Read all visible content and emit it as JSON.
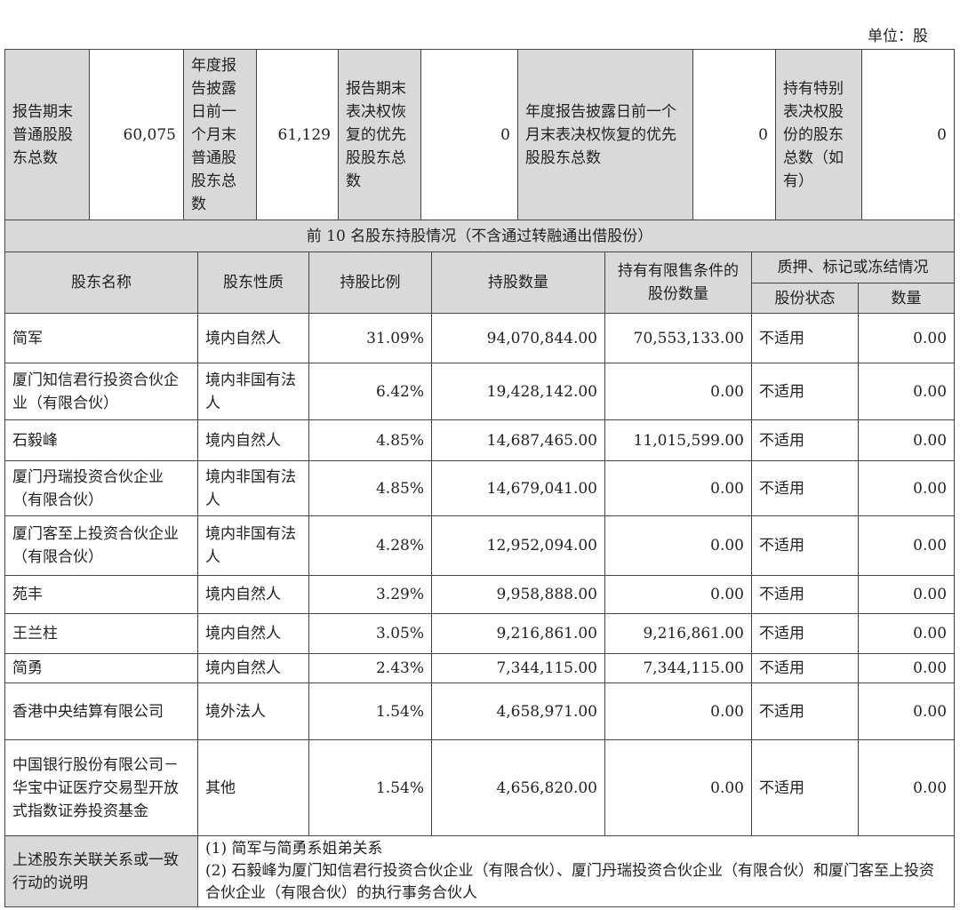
{
  "unit_label": "单位：股",
  "summary": [
    {
      "label": "报告期末普通股股东总数",
      "value": "60,075"
    },
    {
      "label": "年度报告披露日前一个月末普通股股东总数",
      "value": "61,129"
    },
    {
      "label": "报告期末表决权恢复的优先股股东总数",
      "value": "0"
    },
    {
      "label": "年度报告披露日前一个月末表决权恢复的优先股股东总数",
      "value": "0"
    },
    {
      "label": "持有特别表决权股份的股东总数（如有）",
      "value": "0"
    }
  ],
  "section_title": "前 10 名股东持股情况（不含通过转融通出借股份）",
  "headers": {
    "name": "股东名称",
    "nature": "股东性质",
    "ratio": "持股比例",
    "shares": "持股数量",
    "restricted": "持有有限售条件的股份数量",
    "pledge": "质押、标记或冻结情况",
    "status": "股份状态",
    "qty": "数量"
  },
  "rows": [
    {
      "name": "简军",
      "nature": "境内自然人",
      "ratio": "31.09%",
      "shares": "94,070,844.00",
      "restricted": "70,553,133.00",
      "status": "不适用",
      "qty": "0.00"
    },
    {
      "name": "厦门知信君行投资合伙企业（有限合伙）",
      "nature": "境内非国有法人",
      "ratio": "6.42%",
      "shares": "19,428,142.00",
      "restricted": "0.00",
      "status": "不适用",
      "qty": "0.00"
    },
    {
      "name": "石毅峰",
      "nature": "境内自然人",
      "ratio": "4.85%",
      "shares": "14,687,465.00",
      "restricted": "11,015,599.00",
      "status": "不适用",
      "qty": "0.00"
    },
    {
      "name": "厦门丹瑞投资合伙企业（有限合伙）",
      "nature": "境内非国有法人",
      "ratio": "4.85%",
      "shares": "14,679,041.00",
      "restricted": "0.00",
      "status": "不适用",
      "qty": "0.00"
    },
    {
      "name": "厦门客至上投资合伙企业（有限合伙）",
      "nature": "境内非国有法人",
      "ratio": "4.28%",
      "shares": "12,952,094.00",
      "restricted": "0.00",
      "status": "不适用",
      "qty": "0.00"
    },
    {
      "name": "苑丰",
      "nature": "境内自然人",
      "ratio": "3.29%",
      "shares": "9,958,888.00",
      "restricted": "0.00",
      "status": "不适用",
      "qty": "0.00"
    },
    {
      "name": "王兰柱",
      "nature": "境内自然人",
      "ratio": "3.05%",
      "shares": "9,216,861.00",
      "restricted": "9,216,861.00",
      "status": "不适用",
      "qty": "0.00"
    },
    {
      "name": "简勇",
      "nature": "境内自然人",
      "ratio": "2.43%",
      "shares": "7,344,115.00",
      "restricted": "7,344,115.00",
      "status": "不适用",
      "qty": "0.00"
    },
    {
      "name": "香港中央结算有限公司",
      "nature": "境外法人",
      "ratio": "1.54%",
      "shares": "4,658,971.00",
      "restricted": "0.00",
      "status": "不适用",
      "qty": "0.00"
    },
    {
      "name": "中国银行股份有限公司－华宝中证医疗交易型开放式指数证券投资基金",
      "nature": "其他",
      "ratio": "1.54%",
      "shares": "4,656,820.00",
      "restricted": "0.00",
      "status": "不适用",
      "qty": "0.00"
    }
  ],
  "note": {
    "label": "上述股东关联关系或一致行动的说明",
    "lines": [
      "(1) 简军与简勇系姐弟关系",
      "(2) 石毅峰为厦门知信君行投资合伙企业（有限合伙）、厦门丹瑞投资合伙企业（有限合伙）和厦门客至上投资合伙企业（有限合伙）的执行事务合伙人"
    ]
  }
}
